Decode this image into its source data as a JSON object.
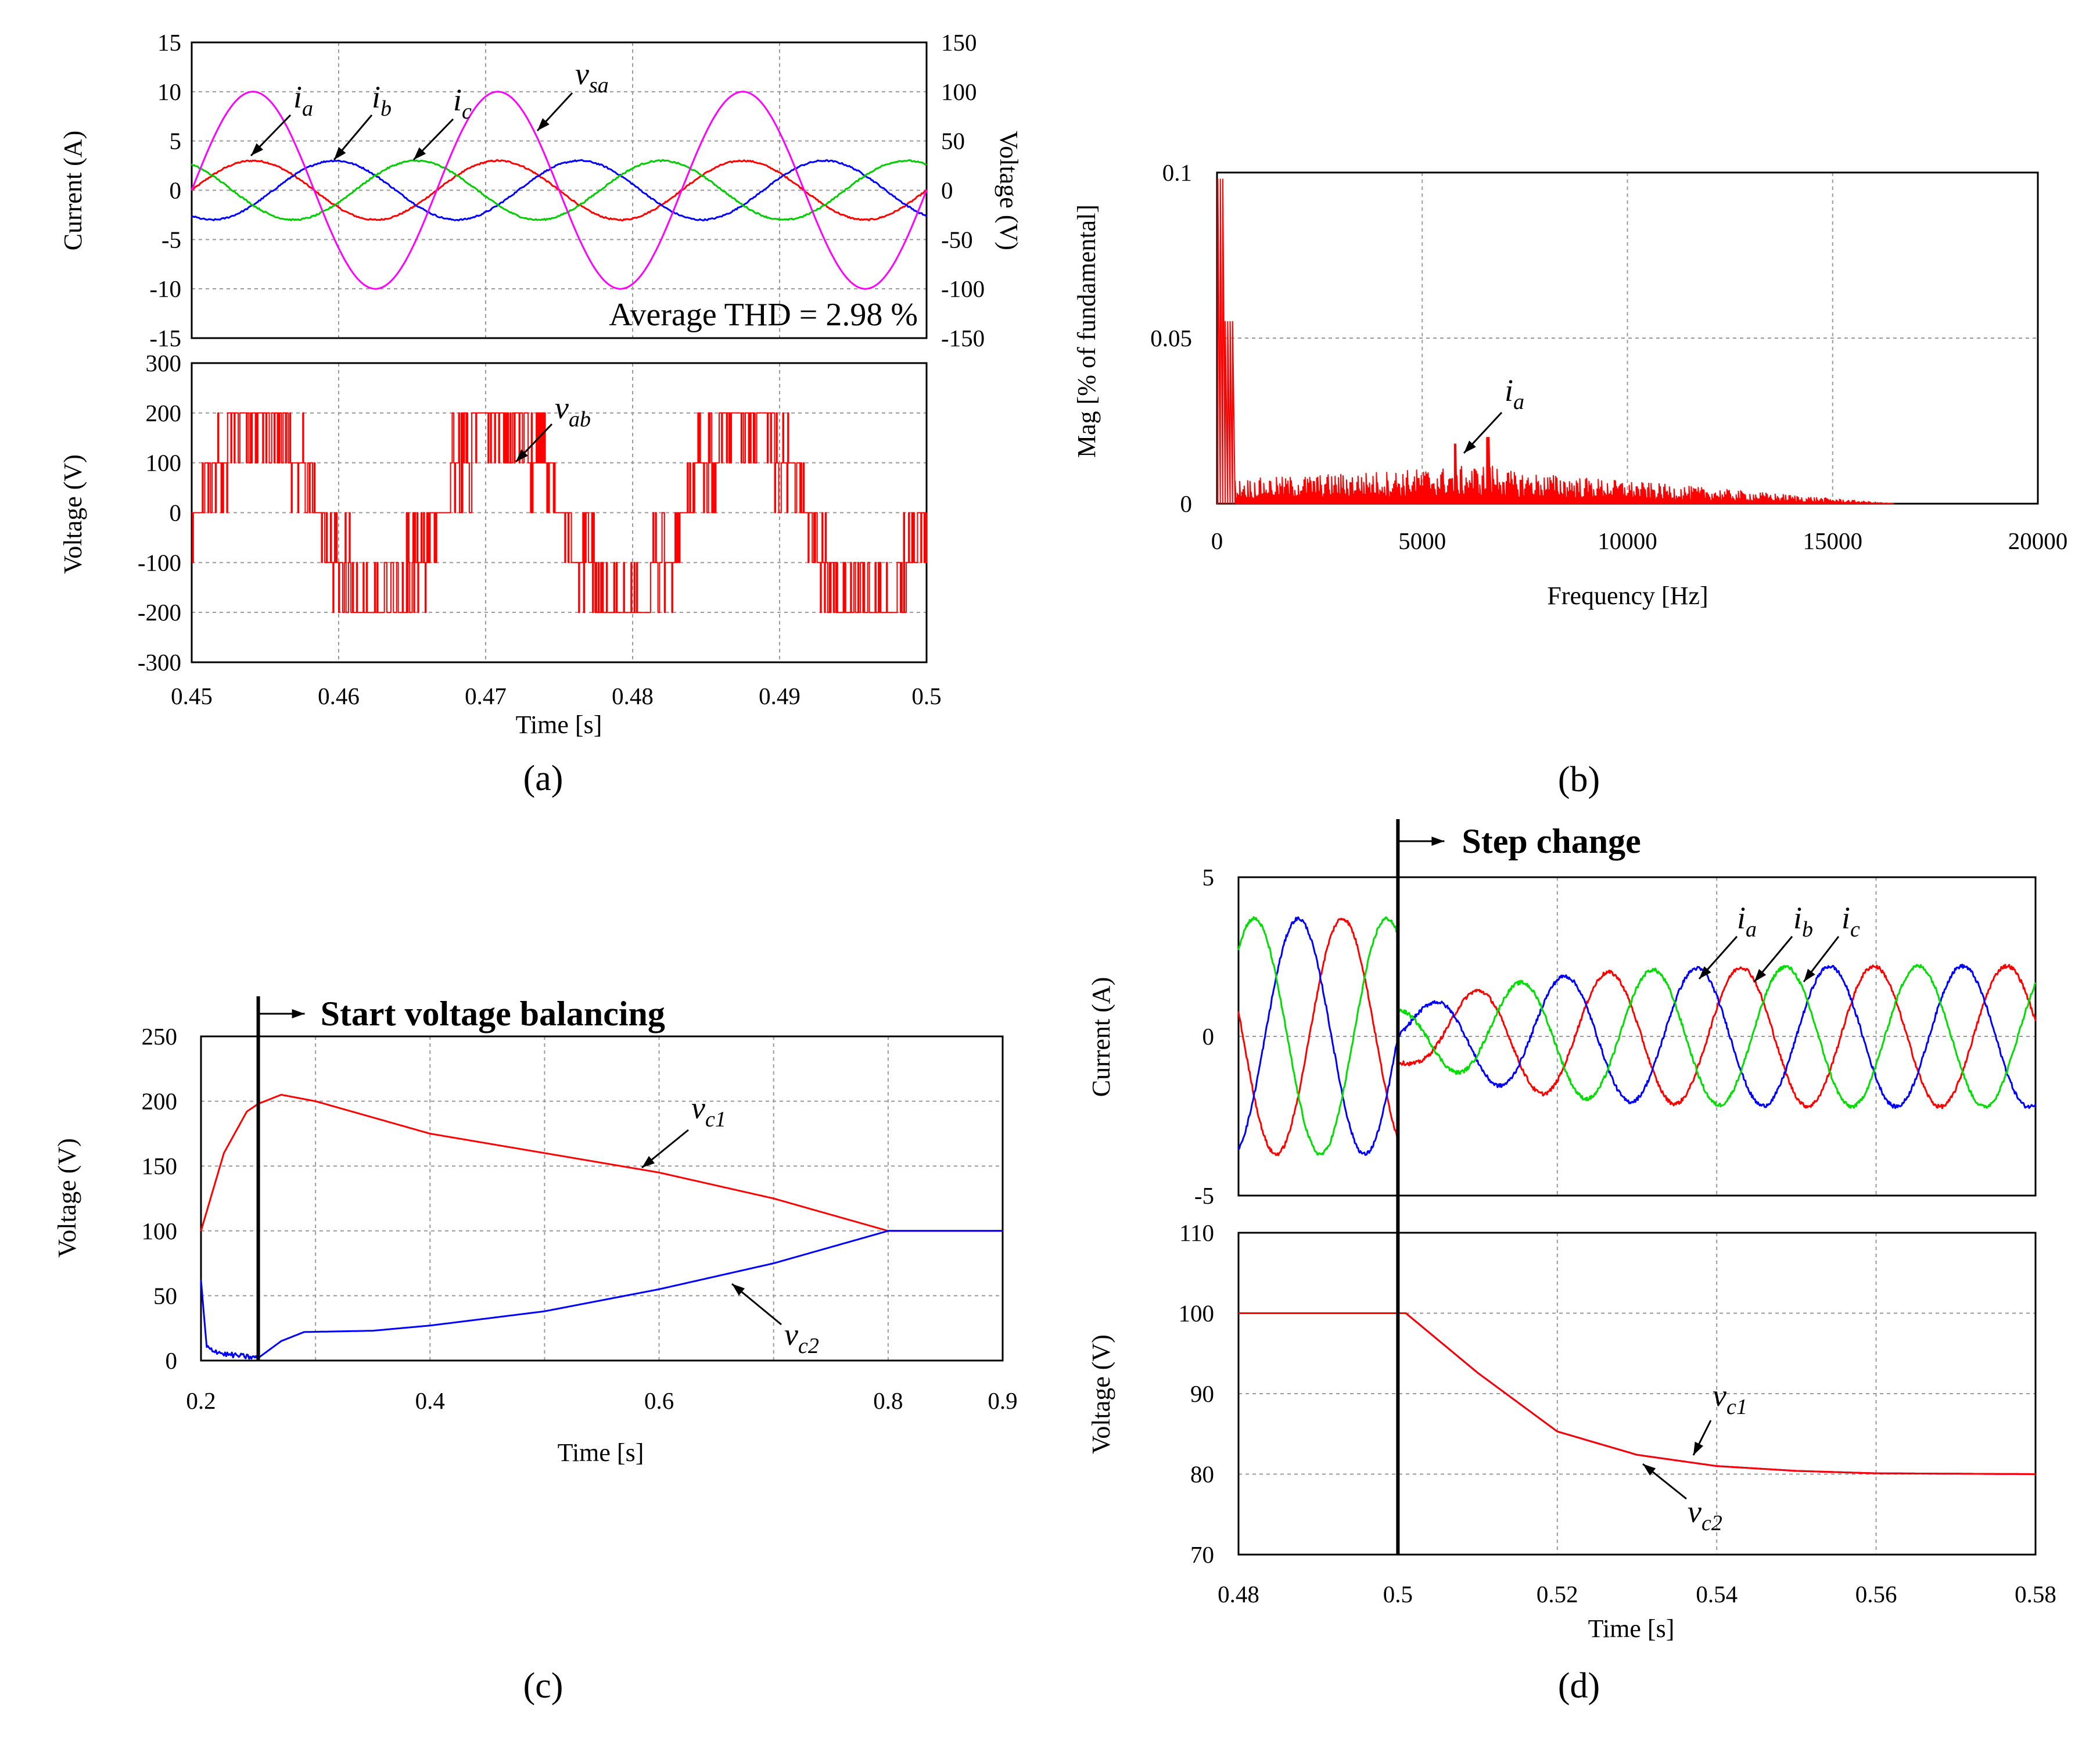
{
  "chart_data": [
    {
      "panel": "a",
      "caption": "(a)",
      "type": "line",
      "upper": {
        "ylabel_left": "Current (A)",
        "ylabel_right": "Voltage  (V)",
        "ylim_left": [
          -15,
          15
        ],
        "yticks_left": [
          "15",
          "10",
          "5",
          "0",
          "-5",
          "-10",
          "-15"
        ],
        "ylim_right": [
          -150,
          150
        ],
        "yticks_right": [
          "150",
          "100",
          "50",
          "0",
          "-50",
          "-100",
          "-150"
        ],
        "grid": true,
        "series": [
          {
            "name": "i_a",
            "axis": "left",
            "color": "#ff0000",
            "amplitude": 3,
            "frequency_hz": 60,
            "phase_deg": 0
          },
          {
            "name": "i_b",
            "axis": "left",
            "color": "#0000ff",
            "amplitude": 3,
            "frequency_hz": 60,
            "phase_deg": -120
          },
          {
            "name": "i_c",
            "axis": "left",
            "color": "#00cc00",
            "amplitude": 3,
            "frequency_hz": 60,
            "phase_deg": 120
          },
          {
            "name": "v_sa",
            "axis": "right",
            "color": "#ff00ff",
            "amplitude": 100,
            "frequency_hz": 60,
            "phase_deg": 0
          }
        ],
        "labels": [
          {
            "main": "i",
            "sub": "a"
          },
          {
            "main": "i",
            "sub": "b"
          },
          {
            "main": "i",
            "sub": "c"
          },
          {
            "main": "v",
            "sub": "sa"
          }
        ],
        "annotation": "Average THD = 2.98 %"
      },
      "lower": {
        "ylabel": "Voltage  (V)",
        "ylim": [
          -300,
          300
        ],
        "yticks": [
          "300",
          "200",
          "100",
          "0",
          "-100",
          "-200",
          "-300"
        ],
        "grid": true,
        "series": [
          {
            "name": "v_ab",
            "color": "#ff0000",
            "levels": [
              -200,
              -100,
              0,
              100,
              200
            ],
            "frequency_hz": 60
          }
        ],
        "labels": [
          {
            "main": "v",
            "sub": "ab"
          }
        ]
      },
      "xlabel": "Time [s]",
      "xlim": [
        0.45,
        0.5
      ],
      "xticks": [
        "0.45",
        "0.46",
        "0.47",
        "0.48",
        "0.49",
        "0.5"
      ]
    },
    {
      "panel": "b",
      "caption": "(b)",
      "type": "line",
      "title": "",
      "xlabel": "Frequency [Hz]",
      "ylabel": "Mag [% of fundamental]",
      "xlim": [
        0,
        20000
      ],
      "ylim": [
        0,
        0.1
      ],
      "xticks": [
        "0",
        "5000",
        "10000",
        "15000",
        "20000"
      ],
      "yticks": [
        "0.1",
        "0.05",
        "0"
      ],
      "grid": true,
      "series": [
        {
          "name": "i_a spectrum",
          "color": "#ff0000",
          "points": [
            [
              60,
              0.1
            ],
            [
              180,
              0.055
            ],
            [
              300,
              0.03
            ],
            [
              5800,
              0.018
            ],
            [
              6600,
              0.02
            ],
            [
              16500,
              0.0
            ]
          ]
        }
      ],
      "labels": [
        {
          "main": "i",
          "sub": "a"
        }
      ]
    },
    {
      "panel": "c",
      "caption": "(c)",
      "type": "line",
      "xlabel": "Time [s]",
      "ylabel": "Voltage  (V)",
      "xlim": [
        0.2,
        0.9
      ],
      "ylim": [
        0,
        250
      ],
      "xticks": [
        "0.2",
        "0.4",
        "0.6",
        "0.8",
        "0.9"
      ],
      "yticks": [
        "250",
        "200",
        "150",
        "100",
        "50",
        "0"
      ],
      "grid": true,
      "event": {
        "x": 0.25,
        "label": "Start voltage balancing"
      },
      "series": [
        {
          "name": "v_c1",
          "color": "#ff0000",
          "x": [
            0.2,
            0.22,
            0.24,
            0.25,
            0.27,
            0.3,
            0.4,
            0.5,
            0.6,
            0.7,
            0.8,
            0.85,
            0.9
          ],
          "y": [
            100,
            160,
            192,
            198,
            205,
            200,
            175,
            160,
            145,
            125,
            100,
            100,
            100
          ]
        },
        {
          "name": "v_c2",
          "color": "#0000ff",
          "x": [
            0.2,
            0.205,
            0.22,
            0.24,
            0.25,
            0.27,
            0.29,
            0.35,
            0.4,
            0.5,
            0.6,
            0.7,
            0.8,
            0.85,
            0.9
          ],
          "y": [
            62,
            10,
            5,
            3,
            2,
            15,
            22,
            23,
            27,
            38,
            55,
            75,
            100,
            100,
            100
          ]
        }
      ],
      "labels": [
        {
          "main": "v",
          "sub": "c1"
        },
        {
          "main": "v",
          "sub": "c2"
        }
      ]
    },
    {
      "panel": "d",
      "caption": "(d)",
      "type": "line",
      "event": {
        "x": 0.5,
        "label": "Step change"
      },
      "upper": {
        "ylabel": "Current (A)",
        "ylim": [
          -5,
          5
        ],
        "yticks": [
          "5",
          "0",
          "-5"
        ],
        "grid": true,
        "series": [
          {
            "name": "i_a",
            "color": "#ff0000",
            "amp_before": 3.7,
            "amp_after": 2.2,
            "frequency_hz": 60,
            "phase_deg": -120
          },
          {
            "name": "i_b",
            "color": "#0000ff",
            "amp_before": 3.7,
            "amp_after": 2.2,
            "frequency_hz": 60,
            "phase_deg": 0
          },
          {
            "name": "i_c",
            "color": "#00dd00",
            "amp_before": 3.7,
            "amp_after": 2.2,
            "frequency_hz": 60,
            "phase_deg": 120
          }
        ],
        "labels": [
          {
            "main": "i",
            "sub": "a"
          },
          {
            "main": "i",
            "sub": "b"
          },
          {
            "main": "i",
            "sub": "c"
          }
        ]
      },
      "lower": {
        "ylabel": "Voltage  (V)",
        "ylim": [
          70,
          110
        ],
        "yticks": [
          "110",
          "100",
          "90",
          "80",
          "70"
        ],
        "grid": true,
        "series": [
          {
            "name": "v_c1",
            "color": "#ff0000",
            "x": [
              0.48,
              0.5,
              0.501,
              0.51,
              0.52,
              0.53,
              0.54,
              0.55,
              0.56,
              0.58
            ],
            "y": [
              100,
              100,
              100,
              92.6,
              85.3,
              82.4,
              81.0,
              80.4,
              80.1,
              80.0
            ]
          },
          {
            "name": "v_c2",
            "color": "#0000ff",
            "x": [
              0.48,
              0.5,
              0.501,
              0.51,
              0.52,
              0.53,
              0.54,
              0.55,
              0.56,
              0.58
            ],
            "y": [
              100,
              100,
              100,
              92.6,
              85.3,
              82.4,
              81.0,
              80.4,
              80.1,
              80.0
            ]
          }
        ],
        "labels": [
          {
            "main": "v",
            "sub": "c1"
          },
          {
            "main": "v",
            "sub": "c2"
          }
        ]
      },
      "xlabel": "Time [s]",
      "xlim": [
        0.48,
        0.58
      ],
      "xticks": [
        "0.48",
        "0.5",
        "0.52",
        "0.54",
        "0.56",
        "0.58"
      ]
    }
  ]
}
